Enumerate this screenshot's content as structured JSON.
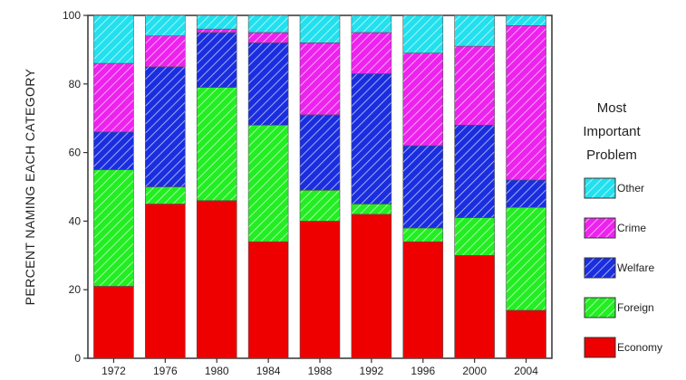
{
  "chart_data": {
    "type": "bar",
    "stacked": true,
    "categories": [
      "1972",
      "1976",
      "1980",
      "1984",
      "1988",
      "1992",
      "1996",
      "2000",
      "2004"
    ],
    "series": [
      {
        "name": "Economy",
        "color": "#ee0000",
        "hatched": false,
        "values": [
          21,
          45,
          46,
          34,
          40,
          42,
          34,
          30,
          14
        ]
      },
      {
        "name": "Foreign",
        "color": "#22ee22",
        "hatched": true,
        "values": [
          34,
          5,
          33,
          34,
          9,
          3,
          4,
          11,
          30
        ]
      },
      {
        "name": "Welfare",
        "color": "#1a2ee0",
        "hatched": true,
        "values": [
          11,
          35,
          16,
          24,
          22,
          38,
          24,
          27,
          8
        ]
      },
      {
        "name": "Crime",
        "color": "#ee22ee",
        "hatched": true,
        "values": [
          20,
          9,
          1,
          3,
          21,
          12,
          27,
          23,
          45
        ]
      },
      {
        "name": "Other",
        "color": "#22e0ee",
        "hatched": true,
        "values": [
          14,
          6,
          4,
          5,
          8,
          5,
          11,
          9,
          3
        ]
      }
    ],
    "ylabel": "PERCENT NAMING EACH CATEGORY",
    "xlabel": "",
    "ylim": [
      0,
      100
    ],
    "yticks": [
      "0",
      "20",
      "40",
      "60",
      "80",
      "100"
    ],
    "grid": false,
    "legend": {
      "title_lines": [
        "Most",
        "Important",
        "Problem"
      ],
      "entries": [
        "Other",
        "Crime",
        "Welfare",
        "Foreign",
        "Economy"
      ],
      "placement": "right"
    }
  }
}
